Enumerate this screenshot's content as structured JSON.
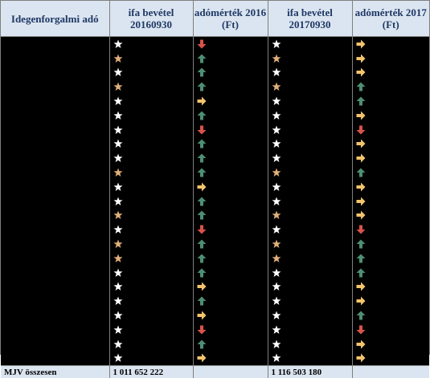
{
  "table": {
    "headers": [
      "Idegenforgalmi adó",
      "ifa bevétel 20160930",
      "adómérték 2016 (Ft)",
      "ifa bevétel 20170930",
      "adómérték 2017 (Ft)"
    ],
    "rows": [
      {
        "rev2016": "white-star-icon",
        "rate2016": "arrow-down-red-icon",
        "rev2017": "white-star-icon",
        "rate2017": "arrow-right-yellow-icon"
      },
      {
        "rev2016": "gold-star-icon",
        "rate2016": "arrow-up-green-icon",
        "rev2017": "gold-star-icon",
        "rate2017": "arrow-right-yellow-icon"
      },
      {
        "rev2016": "white-star-icon",
        "rate2016": "arrow-up-green-icon",
        "rev2017": "white-star-icon",
        "rate2017": "arrow-right-yellow-icon"
      },
      {
        "rev2016": "gold-star-icon",
        "rate2016": "arrow-up-green-icon",
        "rev2017": "gold-star-icon",
        "rate2017": "arrow-up-green-icon"
      },
      {
        "rev2016": "white-star-icon",
        "rate2016": "arrow-right-yellow-icon",
        "rev2017": "white-star-icon",
        "rate2017": "arrow-up-green-icon"
      },
      {
        "rev2016": "white-star-icon",
        "rate2016": "arrow-up-green-icon",
        "rev2017": "white-star-icon",
        "rate2017": "arrow-right-yellow-icon"
      },
      {
        "rev2016": "white-star-icon",
        "rate2016": "arrow-down-red-icon",
        "rev2017": "white-star-icon",
        "rate2017": "arrow-down-red-icon"
      },
      {
        "rev2016": "white-star-icon",
        "rate2016": "arrow-up-green-icon",
        "rev2017": "white-star-icon",
        "rate2017": "arrow-right-yellow-icon"
      },
      {
        "rev2016": "white-star-icon",
        "rate2016": "arrow-up-green-icon",
        "rev2017": "white-star-icon",
        "rate2017": "arrow-right-yellow-icon"
      },
      {
        "rev2016": "gold-star-icon",
        "rate2016": "arrow-up-green-icon",
        "rev2017": "gold-star-icon",
        "rate2017": "arrow-up-green-icon"
      },
      {
        "rev2016": "white-star-icon",
        "rate2016": "arrow-right-yellow-icon",
        "rev2017": "white-star-icon",
        "rate2017": "arrow-right-yellow-icon"
      },
      {
        "rev2016": "white-star-icon",
        "rate2016": "arrow-up-green-icon",
        "rev2017": "white-star-icon",
        "rate2017": "arrow-right-yellow-icon"
      },
      {
        "rev2016": "gold-star-icon",
        "rate2016": "arrow-up-green-icon",
        "rev2017": "gold-star-icon",
        "rate2017": "arrow-right-yellow-icon"
      },
      {
        "rev2016": "white-star-icon",
        "rate2016": "arrow-down-red-icon",
        "rev2017": "white-star-icon",
        "rate2017": "arrow-down-red-icon"
      },
      {
        "rev2016": "gold-star-icon",
        "rate2016": "arrow-up-green-icon",
        "rev2017": "gold-star-icon",
        "rate2017": "arrow-up-green-icon"
      },
      {
        "rev2016": "gold-star-icon",
        "rate2016": "arrow-up-green-icon",
        "rev2017": "gold-star-icon",
        "rate2017": "arrow-up-green-icon"
      },
      {
        "rev2016": "white-star-icon",
        "rate2016": "arrow-up-green-icon",
        "rev2017": "white-star-icon",
        "rate2017": "arrow-up-green-icon"
      },
      {
        "rev2016": "white-star-icon",
        "rate2016": "arrow-right-yellow-icon",
        "rev2017": "white-star-icon",
        "rate2017": "arrow-right-yellow-icon"
      },
      {
        "rev2016": "white-star-icon",
        "rate2016": "arrow-up-green-icon",
        "rev2017": "white-star-icon",
        "rate2017": "arrow-right-yellow-icon"
      },
      {
        "rev2016": "white-star-icon",
        "rate2016": "arrow-right-yellow-icon",
        "rev2017": "white-star-icon",
        "rate2017": "arrow-up-green-icon"
      },
      {
        "rev2016": "white-star-icon",
        "rate2016": "arrow-down-red-icon",
        "rev2017": "white-star-icon",
        "rate2017": "arrow-down-red-icon"
      },
      {
        "rev2016": "white-star-icon",
        "rate2016": "arrow-up-green-icon",
        "rev2017": "white-star-icon",
        "rate2017": "arrow-right-yellow-icon"
      },
      {
        "rev2016": "white-star-icon",
        "rate2016": "arrow-right-yellow-icon",
        "rev2017": "white-star-icon",
        "rate2017": "arrow-right-yellow-icon"
      }
    ],
    "footer": {
      "label": "MJV összesen",
      "rev2016": "1 011 652 222",
      "rate2016": "",
      "rev2017": "1 116 503 180",
      "rate2017": ""
    }
  },
  "colors": {
    "header_bg": "#dbe5f1",
    "header_text": "#1f3864",
    "body_bg": "#000000",
    "grid": "#7f7f7f",
    "star_white": "#ffffff",
    "star_gold": "#e0b07a",
    "arrow_up_green": "#4e8f74",
    "arrow_down_red": "#d9534b",
    "arrow_right_yellow": "#f3c46d"
  }
}
